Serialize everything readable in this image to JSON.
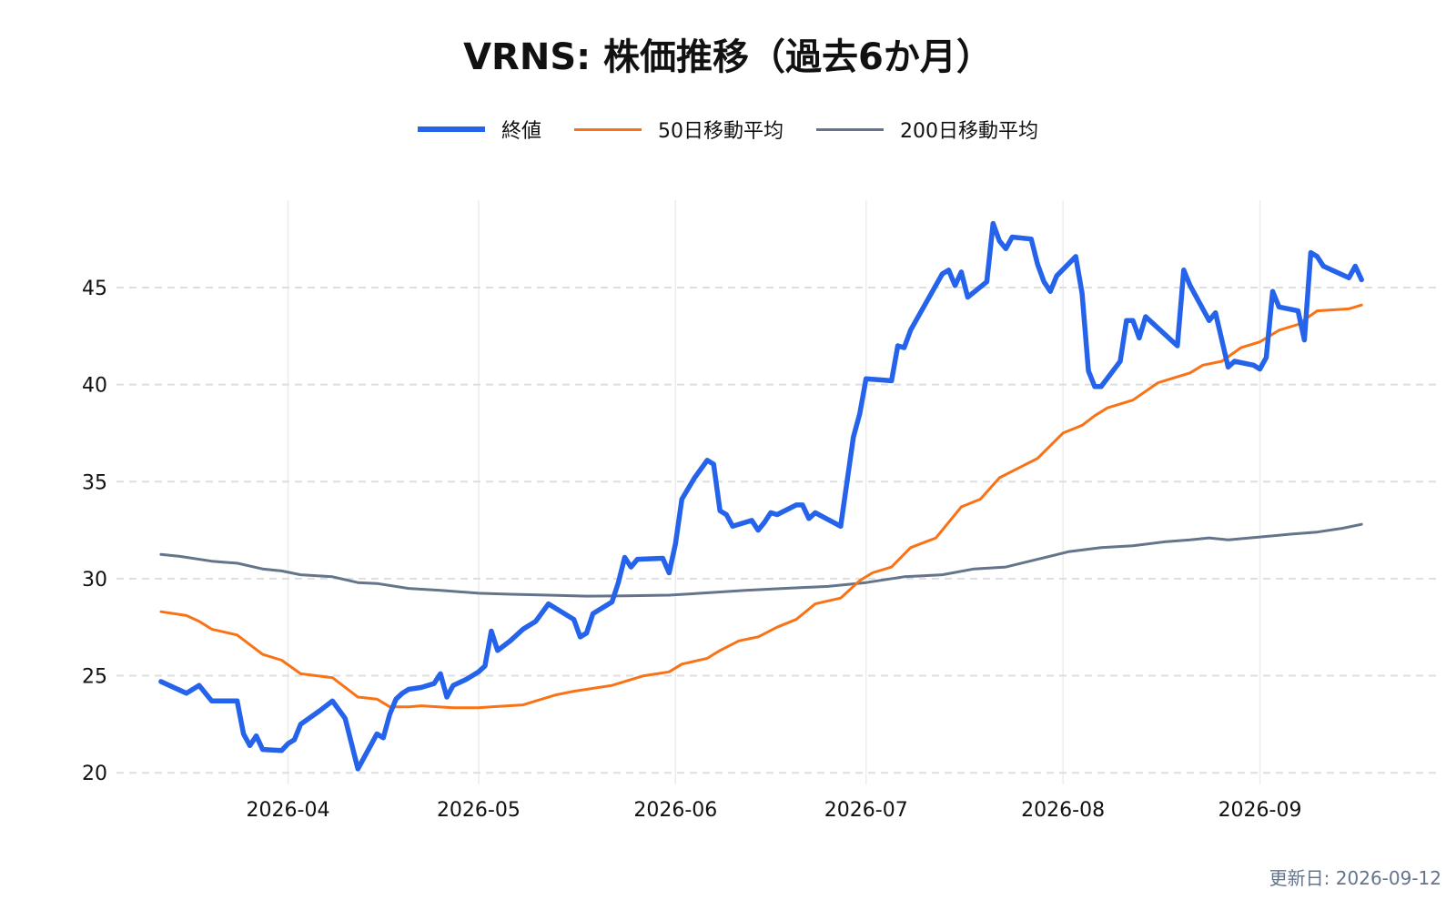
{
  "chart_data": {
    "type": "line",
    "title": "VRNS: 株価推移（過去6か月）",
    "xlabel": "",
    "ylabel": "",
    "ylim": [
      19.4,
      49.5
    ],
    "y_ticks": [
      20,
      25,
      30,
      35,
      40,
      45
    ],
    "x_ticks": [
      "2026-04",
      "2026-05",
      "2026-06",
      "2026-07",
      "2026-08",
      "2026-09"
    ],
    "grid": true,
    "legend_position": "top",
    "series": [
      {
        "name": "終値",
        "color": "#2563eb",
        "points": [
          [
            "2026-03-12",
            24.7
          ],
          [
            "2026-03-16",
            24.1
          ],
          [
            "2026-03-18",
            24.5
          ],
          [
            "2026-03-20",
            23.7
          ],
          [
            "2026-03-23",
            23.7
          ],
          [
            "2026-03-24",
            23.7
          ],
          [
            "2026-03-25",
            22.0
          ],
          [
            "2026-03-26",
            21.4
          ],
          [
            "2026-03-27",
            21.9
          ],
          [
            "2026-03-28",
            21.2
          ],
          [
            "2026-03-31",
            21.15
          ],
          [
            "2026-04-01",
            21.5
          ],
          [
            "2026-04-02",
            21.7
          ],
          [
            "2026-04-03",
            22.5
          ],
          [
            "2026-04-06",
            23.2
          ],
          [
            "2026-04-08",
            23.7
          ],
          [
            "2026-04-10",
            22.8
          ],
          [
            "2026-04-12",
            20.2
          ],
          [
            "2026-04-15",
            22.0
          ],
          [
            "2026-04-16",
            21.8
          ],
          [
            "2026-04-17",
            23.0
          ],
          [
            "2026-04-18",
            23.8
          ],
          [
            "2026-04-19",
            24.1
          ],
          [
            "2026-04-20",
            24.3
          ],
          [
            "2026-04-22",
            24.4
          ],
          [
            "2026-04-24",
            24.6
          ],
          [
            "2026-04-25",
            25.1
          ],
          [
            "2026-04-26",
            23.9
          ],
          [
            "2026-04-27",
            24.5
          ],
          [
            "2026-04-29",
            24.8
          ],
          [
            "2026-05-01",
            25.2
          ],
          [
            "2026-05-02",
            25.5
          ],
          [
            "2026-05-03",
            27.3
          ],
          [
            "2026-05-04",
            26.3
          ],
          [
            "2026-05-06",
            26.8
          ],
          [
            "2026-05-08",
            27.4
          ],
          [
            "2026-05-10",
            27.8
          ],
          [
            "2026-05-12",
            28.7
          ],
          [
            "2026-05-14",
            28.3
          ],
          [
            "2026-05-16",
            27.9
          ],
          [
            "2026-05-17",
            27.0
          ],
          [
            "2026-05-18",
            27.2
          ],
          [
            "2026-05-19",
            28.2
          ],
          [
            "2026-05-22",
            28.8
          ],
          [
            "2026-05-23",
            29.8
          ],
          [
            "2026-05-24",
            31.1
          ],
          [
            "2026-05-25",
            30.6
          ],
          [
            "2026-05-26",
            31.0
          ],
          [
            "2026-05-30",
            31.05
          ],
          [
            "2026-05-31",
            30.3
          ],
          [
            "2026-06-01",
            31.8
          ],
          [
            "2026-06-02",
            34.1
          ],
          [
            "2026-06-04",
            35.2
          ],
          [
            "2026-06-06",
            36.1
          ],
          [
            "2026-06-07",
            35.9
          ],
          [
            "2026-06-08",
            33.5
          ],
          [
            "2026-06-09",
            33.3
          ],
          [
            "2026-06-10",
            32.7
          ],
          [
            "2026-06-13",
            33.0
          ],
          [
            "2026-06-14",
            32.5
          ],
          [
            "2026-06-15",
            32.9
          ],
          [
            "2026-06-16",
            33.4
          ],
          [
            "2026-06-17",
            33.3
          ],
          [
            "2026-06-20",
            33.8
          ],
          [
            "2026-06-21",
            33.8
          ],
          [
            "2026-06-22",
            33.1
          ],
          [
            "2026-06-23",
            33.4
          ],
          [
            "2026-06-27",
            32.7
          ],
          [
            "2026-06-29",
            37.3
          ],
          [
            "2026-06-30",
            38.5
          ],
          [
            "2026-07-01",
            40.3
          ],
          [
            "2026-07-05",
            40.2
          ],
          [
            "2026-07-06",
            42.0
          ],
          [
            "2026-07-07",
            41.9
          ],
          [
            "2026-07-08",
            42.8
          ],
          [
            "2026-07-13",
            45.7
          ],
          [
            "2026-07-14",
            45.9
          ],
          [
            "2026-07-15",
            45.1
          ],
          [
            "2026-07-16",
            45.8
          ],
          [
            "2026-07-17",
            44.5
          ],
          [
            "2026-07-20",
            45.3
          ],
          [
            "2026-07-21",
            48.3
          ],
          [
            "2026-07-22",
            47.4
          ],
          [
            "2026-07-23",
            47.0
          ],
          [
            "2026-07-24",
            47.6
          ],
          [
            "2026-07-27",
            47.5
          ],
          [
            "2026-07-28",
            46.2
          ],
          [
            "2026-07-29",
            45.3
          ],
          [
            "2026-07-30",
            44.8
          ],
          [
            "2026-07-31",
            45.6
          ],
          [
            "2026-08-03",
            46.6
          ],
          [
            "2026-08-04",
            44.7
          ],
          [
            "2026-08-05",
            40.7
          ],
          [
            "2026-08-06",
            39.9
          ],
          [
            "2026-08-07",
            39.9
          ],
          [
            "2026-08-10",
            41.2
          ],
          [
            "2026-08-11",
            43.3
          ],
          [
            "2026-08-12",
            43.3
          ],
          [
            "2026-08-13",
            42.4
          ],
          [
            "2026-08-14",
            43.5
          ],
          [
            "2026-08-18",
            42.3
          ],
          [
            "2026-08-19",
            42.0
          ],
          [
            "2026-08-20",
            45.9
          ],
          [
            "2026-08-21",
            45.1
          ],
          [
            "2026-08-24",
            43.3
          ],
          [
            "2026-08-25",
            43.7
          ],
          [
            "2026-08-27",
            40.9
          ],
          [
            "2026-08-28",
            41.2
          ],
          [
            "2026-08-31",
            41.0
          ],
          [
            "2026-09-01",
            40.8
          ],
          [
            "2026-09-02",
            41.4
          ],
          [
            "2026-09-03",
            44.8
          ],
          [
            "2026-09-04",
            44.0
          ],
          [
            "2026-09-07",
            43.8
          ],
          [
            "2026-09-08",
            42.3
          ],
          [
            "2026-09-09",
            46.8
          ],
          [
            "2026-09-10",
            46.6
          ],
          [
            "2026-09-11",
            46.1
          ],
          [
            "2026-09-15",
            45.5
          ],
          [
            "2026-09-16",
            46.1
          ],
          [
            "2026-09-17",
            45.4
          ]
        ]
      },
      {
        "name": "50日移動平均",
        "color": "#f97316",
        "points": [
          [
            "2026-03-12",
            28.3
          ],
          [
            "2026-03-16",
            28.1
          ],
          [
            "2026-03-18",
            27.8
          ],
          [
            "2026-03-20",
            27.4
          ],
          [
            "2026-03-24",
            27.1
          ],
          [
            "2026-03-28",
            26.1
          ],
          [
            "2026-03-31",
            25.8
          ],
          [
            "2026-04-03",
            25.1
          ],
          [
            "2026-04-08",
            24.9
          ],
          [
            "2026-04-12",
            23.9
          ],
          [
            "2026-04-15",
            23.8
          ],
          [
            "2026-04-17",
            23.4
          ],
          [
            "2026-04-20",
            23.4
          ],
          [
            "2026-04-22",
            23.45
          ],
          [
            "2026-04-27",
            23.35
          ],
          [
            "2026-05-01",
            23.35
          ],
          [
            "2026-05-03",
            23.4
          ],
          [
            "2026-05-08",
            23.5
          ],
          [
            "2026-05-10",
            23.7
          ],
          [
            "2026-05-13",
            24.0
          ],
          [
            "2026-05-16",
            24.2
          ],
          [
            "2026-05-18",
            24.3
          ],
          [
            "2026-05-22",
            24.5
          ],
          [
            "2026-05-25",
            24.8
          ],
          [
            "2026-05-27",
            25.0
          ],
          [
            "2026-05-31",
            25.2
          ],
          [
            "2026-06-02",
            25.6
          ],
          [
            "2026-06-06",
            25.9
          ],
          [
            "2026-06-08",
            26.3
          ],
          [
            "2026-06-11",
            26.8
          ],
          [
            "2026-06-14",
            27.0
          ],
          [
            "2026-06-17",
            27.5
          ],
          [
            "2026-06-20",
            27.9
          ],
          [
            "2026-06-23",
            28.7
          ],
          [
            "2026-06-27",
            29.0
          ],
          [
            "2026-06-30",
            29.9
          ],
          [
            "2026-07-02",
            30.3
          ],
          [
            "2026-07-05",
            30.6
          ],
          [
            "2026-07-08",
            31.6
          ],
          [
            "2026-07-12",
            32.1
          ],
          [
            "2026-07-16",
            33.7
          ],
          [
            "2026-07-19",
            34.1
          ],
          [
            "2026-07-22",
            35.2
          ],
          [
            "2026-07-25",
            35.7
          ],
          [
            "2026-07-28",
            36.2
          ],
          [
            "2026-08-01",
            37.5
          ],
          [
            "2026-08-04",
            37.9
          ],
          [
            "2026-08-06",
            38.4
          ],
          [
            "2026-08-08",
            38.8
          ],
          [
            "2026-08-12",
            39.2
          ],
          [
            "2026-08-16",
            40.1
          ],
          [
            "2026-08-19",
            40.4
          ],
          [
            "2026-08-21",
            40.6
          ],
          [
            "2026-08-23",
            41.0
          ],
          [
            "2026-08-26",
            41.2
          ],
          [
            "2026-08-29",
            41.9
          ],
          [
            "2026-09-01",
            42.2
          ],
          [
            "2026-09-04",
            42.8
          ],
          [
            "2026-09-07",
            43.1
          ],
          [
            "2026-09-10",
            43.8
          ],
          [
            "2026-09-15",
            43.9
          ],
          [
            "2026-09-17",
            44.1
          ]
        ]
      },
      {
        "name": "200日移動平均",
        "color": "#64748b",
        "points": [
          [
            "2026-03-12",
            31.25
          ],
          [
            "2026-03-15",
            31.15
          ],
          [
            "2026-03-20",
            30.9
          ],
          [
            "2026-03-24",
            30.8
          ],
          [
            "2026-03-28",
            30.5
          ],
          [
            "2026-03-31",
            30.4
          ],
          [
            "2026-04-03",
            30.2
          ],
          [
            "2026-04-08",
            30.1
          ],
          [
            "2026-04-12",
            29.8
          ],
          [
            "2026-04-15",
            29.75
          ],
          [
            "2026-04-20",
            29.5
          ],
          [
            "2026-04-25",
            29.4
          ],
          [
            "2026-05-01",
            29.25
          ],
          [
            "2026-05-06",
            29.2
          ],
          [
            "2026-05-12",
            29.15
          ],
          [
            "2026-05-18",
            29.1
          ],
          [
            "2026-05-24",
            29.12
          ],
          [
            "2026-05-31",
            29.15
          ],
          [
            "2026-06-05",
            29.25
          ],
          [
            "2026-06-12",
            29.4
          ],
          [
            "2026-06-18",
            29.5
          ],
          [
            "2026-06-25",
            29.6
          ],
          [
            "2026-07-01",
            29.8
          ],
          [
            "2026-07-07",
            30.1
          ],
          [
            "2026-07-13",
            30.2
          ],
          [
            "2026-07-18",
            30.5
          ],
          [
            "2026-07-23",
            30.6
          ],
          [
            "2026-07-28",
            31.0
          ],
          [
            "2026-08-02",
            31.4
          ],
          [
            "2026-08-07",
            31.6
          ],
          [
            "2026-08-12",
            31.7
          ],
          [
            "2026-08-17",
            31.9
          ],
          [
            "2026-08-21",
            32.0
          ],
          [
            "2026-08-24",
            32.1
          ],
          [
            "2026-08-27",
            32.0
          ],
          [
            "2026-09-01",
            32.15
          ],
          [
            "2026-09-06",
            32.3
          ],
          [
            "2026-09-10",
            32.4
          ],
          [
            "2026-09-14",
            32.6
          ],
          [
            "2026-09-17",
            32.8
          ]
        ]
      }
    ]
  },
  "footer": {
    "updated": "更新日: 2026-09-12"
  }
}
